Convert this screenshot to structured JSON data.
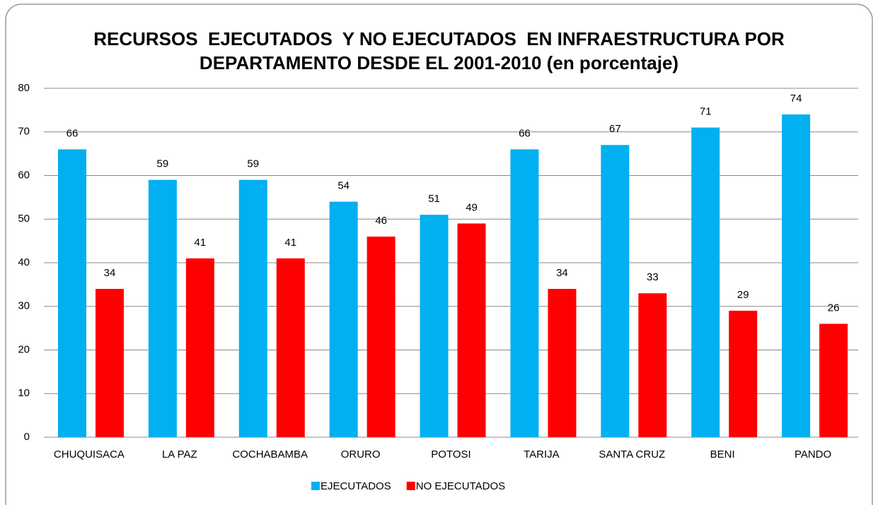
{
  "chart_data": {
    "type": "bar",
    "title": "RECURSOS  EJECUTADOS  Y NO EJECUTADOS  EN INFRAESTRUCTURA POR DEPARTAMENTO DESDE EL 2001-2010 (en porcentaje)",
    "categories": [
      "CHUQUISACA",
      "LA PAZ",
      "COCHABAMBA",
      "ORURO",
      "POTOSI",
      "TARIJA",
      "SANTA CRUZ",
      "BENI",
      "PANDO"
    ],
    "series": [
      {
        "name": "EJECUTADOS",
        "color": "#00b0f0",
        "values": [
          66,
          59,
          59,
          54,
          51,
          66,
          67,
          71,
          74
        ]
      },
      {
        "name": "NO EJECUTADOS",
        "color": "#ff0000",
        "values": [
          34,
          41,
          41,
          46,
          49,
          34,
          33,
          29,
          26
        ]
      }
    ],
    "ylim": [
      0,
      80
    ],
    "yticks": [
      0,
      10,
      20,
      30,
      40,
      50,
      60,
      70,
      80
    ],
    "grid": true,
    "legend": "bottom"
  }
}
